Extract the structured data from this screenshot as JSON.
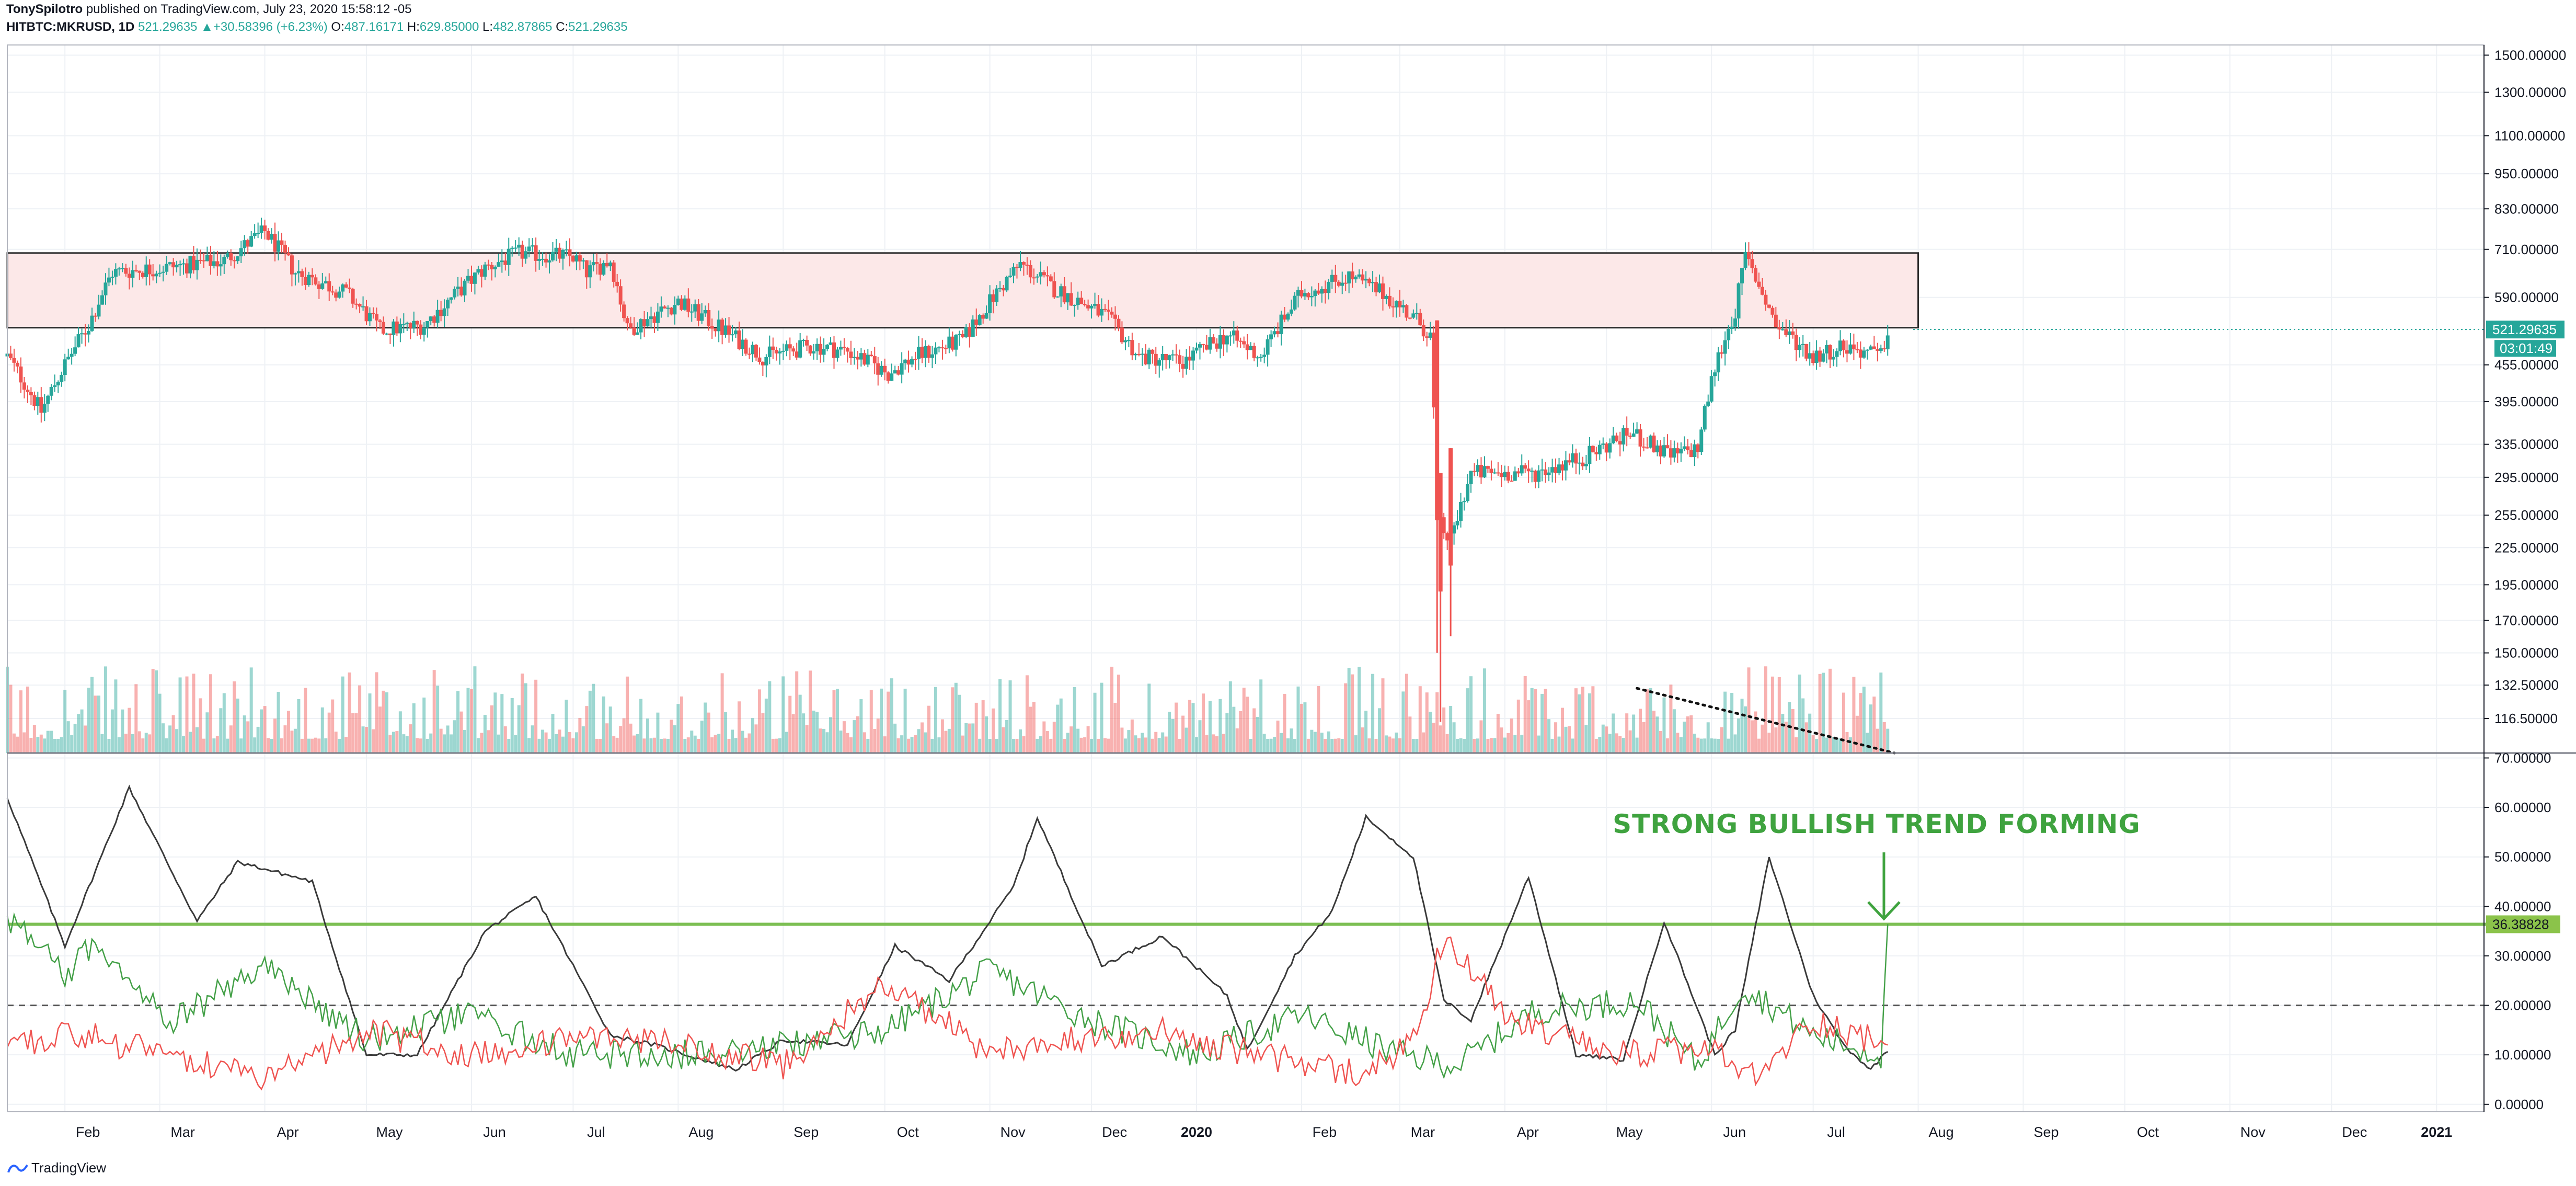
{
  "header": {
    "author": "TonySpilotro",
    "published_text": " published on TradingView.com, July 23, 2020 15:58:12 -05",
    "symbol": "HITBTC:MKRUSD, 1D",
    "last": "521.29635",
    "change": "+30.58396 (+6.23%)",
    "o_label": "O:",
    "o": "487.16171",
    "h_label": "H:",
    "h": "629.85000",
    "l_label": "L:",
    "l": "482.87865",
    "c_label": "C:",
    "c": "521.29635"
  },
  "footer": {
    "brand": "TradingView"
  },
  "colors": {
    "up": "#26a69a",
    "down": "#ef5350",
    "zone_fill": "#fce8e8",
    "adx_line": "#3a3a3a",
    "di_plus": "#43a047",
    "di_minus": "#ef5350",
    "annotation": "#3fa33f",
    "grid": "#eef1f5"
  },
  "chart_data": [
    {
      "type": "candlestick",
      "title": "HITBTC:MKRUSD, 1D",
      "x_ticks": [
        "Feb",
        "Mar",
        "Apr",
        "May",
        "Jun",
        "Jul",
        "Aug",
        "Sep",
        "Oct",
        "Nov",
        "Dec",
        "2020",
        "Feb",
        "Mar",
        "Apr",
        "May",
        "Jun",
        "Jul",
        "Aug",
        "Sep",
        "Oct",
        "Nov",
        "Dec",
        "2021"
      ],
      "y_scale": "log",
      "y_ticks": [
        "1500.00000",
        "1300.00000",
        "1100.00000",
        "950.00000",
        "830.00000",
        "710.00000",
        "590.00000",
        "521.29635",
        "455.00000",
        "395.00000",
        "335.00000",
        "295.00000",
        "255.00000",
        "225.00000",
        "195.00000",
        "170.00000",
        "150.00000",
        "132.50000",
        "116.50000"
      ],
      "price_label": "521.29635",
      "countdown_label": "03:01:49",
      "x_range": [
        "2019-01-15",
        "2021-01-15"
      ],
      "y_range": [
        102,
        1560
      ],
      "resistance_zone": {
        "low": 525,
        "high": 700,
        "from": "2019-01-15",
        "to": "2020-08-01"
      },
      "close_path": [
        [
          "2019-01-15",
          470
        ],
        [
          "2019-01-25",
          380
        ],
        [
          "2019-02-08",
          530
        ],
        [
          "2019-02-15",
          650
        ],
        [
          "2019-03-01",
          660
        ],
        [
          "2019-03-20",
          680
        ],
        [
          "2019-04-01",
          760
        ],
        [
          "2019-04-10",
          650
        ],
        [
          "2019-04-25",
          600
        ],
        [
          "2019-05-05",
          520
        ],
        [
          "2019-05-18",
          530
        ],
        [
          "2019-06-05",
          660
        ],
        [
          "2019-06-15",
          700
        ],
        [
          "2019-07-01",
          690
        ],
        [
          "2019-07-05",
          650
        ],
        [
          "2019-07-12",
          680
        ],
        [
          "2019-07-17",
          520
        ],
        [
          "2019-08-01",
          580
        ],
        [
          "2019-08-12",
          530
        ],
        [
          "2019-08-26",
          470
        ],
        [
          "2019-09-10",
          490
        ],
        [
          "2019-09-20",
          480
        ],
        [
          "2019-10-02",
          440
        ],
        [
          "2019-10-10",
          470
        ],
        [
          "2019-10-24",
          500
        ],
        [
          "2019-11-10",
          670
        ],
        [
          "2019-11-20",
          610
        ],
        [
          "2019-12-05",
          550
        ],
        [
          "2019-12-15",
          470
        ],
        [
          "2019-12-28",
          460
        ],
        [
          "2020-01-10",
          510
        ],
        [
          "2020-01-20",
          470
        ],
        [
          "2020-02-01",
          600
        ],
        [
          "2020-02-15",
          640
        ],
        [
          "2020-02-25",
          600
        ],
        [
          "2020-03-06",
          540
        ],
        [
          "2020-03-10",
          510
        ],
        [
          "2020-03-12",
          250
        ],
        [
          "2020-03-16",
          230
        ],
        [
          "2020-03-22",
          300
        ],
        [
          "2020-04-10",
          300
        ],
        [
          "2020-04-25",
          320
        ],
        [
          "2020-05-08",
          350
        ],
        [
          "2020-05-20",
          320
        ],
        [
          "2020-05-28",
          330
        ],
        [
          "2020-06-02",
          450
        ],
        [
          "2020-06-08",
          560
        ],
        [
          "2020-06-11",
          690
        ],
        [
          "2020-06-20",
          530
        ],
        [
          "2020-07-01",
          470
        ],
        [
          "2020-07-10",
          490
        ],
        [
          "2020-07-21",
          470
        ],
        [
          "2020-07-23",
          521
        ]
      ],
      "volume_trendline": {
        "from": [
          "2020-05-10",
          0.55
        ],
        "to": [
          "2020-07-25",
          0.0
        ]
      }
    },
    {
      "type": "line",
      "title": "ADX / DMI",
      "y_ticks": [
        "70.00000",
        "60.00000",
        "50.00000",
        "40.00000",
        "30.00000",
        "20.00000",
        "10.00000",
        "0.00000"
      ],
      "y_range": [
        -1.5,
        71
      ],
      "ref_line": 20,
      "highlight_line": 36.38828,
      "highlight_label": "36.38828",
      "annotation": "STRONG BULLISH TREND FORMING",
      "series": [
        {
          "values": [
            [
              "2019-01-15",
              62
            ],
            [
              "2019-02-01",
              32
            ],
            [
              "2019-02-20",
              64
            ],
            [
              "2019-03-12",
              37
            ],
            [
              "2019-03-24",
              49
            ],
            [
              "2019-04-15",
              45
            ],
            [
              "2019-05-01",
              10
            ],
            [
              "2019-05-16",
              10
            ],
            [
              "2019-06-05",
              35
            ],
            [
              "2019-06-20",
              42
            ],
            [
              "2019-07-12",
              14
            ],
            [
              "2019-07-25",
              12
            ],
            [
              "2019-08-18",
              7
            ],
            [
              "2019-09-01",
              13
            ],
            [
              "2019-09-20",
              12
            ],
            [
              "2019-10-04",
              32
            ],
            [
              "2019-10-20",
              25
            ],
            [
              "2019-11-08",
              44
            ],
            [
              "2019-11-15",
              58
            ],
            [
              "2019-12-04",
              28
            ],
            [
              "2019-12-22",
              34
            ],
            [
              "2020-01-10",
              22
            ],
            [
              "2020-01-16",
              11
            ],
            [
              "2020-01-30",
              30
            ],
            [
              "2020-02-10",
              39
            ],
            [
              "2020-02-20",
              58
            ],
            [
              "2020-03-05",
              50
            ],
            [
              "2020-03-14",
              21
            ],
            [
              "2020-03-22",
              17
            ],
            [
              "2020-04-08",
              46
            ],
            [
              "2020-04-22",
              10
            ],
            [
              "2020-05-06",
              9
            ],
            [
              "2020-05-18",
              37
            ],
            [
              "2020-06-02",
              10
            ],
            [
              "2020-06-08",
              15
            ],
            [
              "2020-06-18",
              50
            ],
            [
              "2020-07-01",
              22
            ],
            [
              "2020-07-10",
              12
            ],
            [
              "2020-07-18",
              7
            ],
            [
              "2020-07-23",
              11
            ]
          ]
        },
        {
          "values": [
            [
              "2019-01-15",
              38
            ],
            [
              "2019-02-01",
              26
            ],
            [
              "2019-02-10",
              33
            ],
            [
              "2019-03-05",
              17
            ],
            [
              "2019-04-01",
              28
            ],
            [
              "2019-05-01",
              13
            ],
            [
              "2019-06-01",
              18
            ],
            [
              "2019-07-01",
              10
            ],
            [
              "2019-08-01",
              10
            ],
            [
              "2019-09-01",
              12
            ],
            [
              "2019-10-01",
              15
            ],
            [
              "2019-11-01",
              27
            ],
            [
              "2019-12-01",
              17
            ],
            [
              "2020-01-01",
              10
            ],
            [
              "2020-02-01",
              18
            ],
            [
              "2020-03-01",
              10
            ],
            [
              "2020-03-18",
              8
            ],
            [
              "2020-04-10",
              19
            ],
            [
              "2020-05-10",
              21
            ],
            [
              "2020-05-28",
              8
            ],
            [
              "2020-06-10",
              24
            ],
            [
              "2020-07-01",
              14
            ],
            [
              "2020-07-21",
              10
            ],
            [
              "2020-07-23",
              36.4
            ]
          ]
        },
        {
          "values": [
            [
              "2019-01-15",
              10
            ],
            [
              "2019-02-01",
              15
            ],
            [
              "2019-03-01",
              10
            ],
            [
              "2019-04-01",
              5
            ],
            [
              "2019-05-01",
              15
            ],
            [
              "2019-06-01",
              10
            ],
            [
              "2019-07-01",
              13
            ],
            [
              "2019-08-01",
              12
            ],
            [
              "2019-09-01",
              8
            ],
            [
              "2019-10-01",
              25
            ],
            [
              "2019-11-01",
              10
            ],
            [
              "2019-11-20",
              13
            ],
            [
              "2019-12-20",
              15
            ],
            [
              "2020-01-20",
              10
            ],
            [
              "2020-02-20",
              6
            ],
            [
              "2020-03-06",
              14
            ],
            [
              "2020-03-14",
              34
            ],
            [
              "2020-04-01",
              18
            ],
            [
              "2020-05-01",
              10
            ],
            [
              "2020-06-01",
              11
            ],
            [
              "2020-06-14",
              5
            ],
            [
              "2020-07-01",
              17
            ],
            [
              "2020-07-23",
              12
            ]
          ]
        }
      ]
    }
  ]
}
